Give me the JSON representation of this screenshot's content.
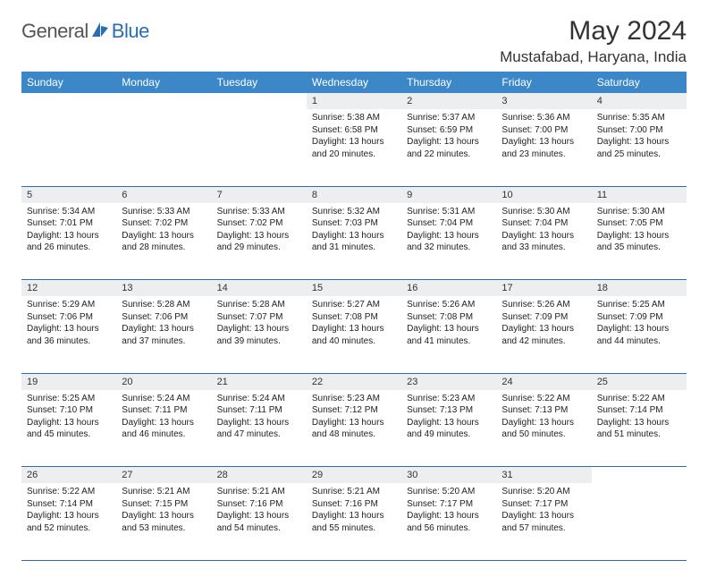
{
  "brand": {
    "part1": "General",
    "part2": "Blue"
  },
  "title": "May 2024",
  "location": "Mustafabad, Haryana, India",
  "weekdays": [
    "Sunday",
    "Monday",
    "Tuesday",
    "Wednesday",
    "Thursday",
    "Friday",
    "Saturday"
  ],
  "colors": {
    "header_bg": "#3b87c8",
    "header_text": "#ffffff",
    "daynum_bg": "#eceeef",
    "border": "#2a6db5",
    "logo_blue": "#2a6db5",
    "text": "#333333"
  },
  "weeks": [
    [
      {
        "n": "",
        "empty": true
      },
      {
        "n": "",
        "empty": true
      },
      {
        "n": "",
        "empty": true
      },
      {
        "n": "1",
        "sr": "5:38 AM",
        "ss": "6:58 PM",
        "dl": "13 hours and 20 minutes."
      },
      {
        "n": "2",
        "sr": "5:37 AM",
        "ss": "6:59 PM",
        "dl": "13 hours and 22 minutes."
      },
      {
        "n": "3",
        "sr": "5:36 AM",
        "ss": "7:00 PM",
        "dl": "13 hours and 23 minutes."
      },
      {
        "n": "4",
        "sr": "5:35 AM",
        "ss": "7:00 PM",
        "dl": "13 hours and 25 minutes."
      }
    ],
    [
      {
        "n": "5",
        "sr": "5:34 AM",
        "ss": "7:01 PM",
        "dl": "13 hours and 26 minutes."
      },
      {
        "n": "6",
        "sr": "5:33 AM",
        "ss": "7:02 PM",
        "dl": "13 hours and 28 minutes."
      },
      {
        "n": "7",
        "sr": "5:33 AM",
        "ss": "7:02 PM",
        "dl": "13 hours and 29 minutes."
      },
      {
        "n": "8",
        "sr": "5:32 AM",
        "ss": "7:03 PM",
        "dl": "13 hours and 31 minutes."
      },
      {
        "n": "9",
        "sr": "5:31 AM",
        "ss": "7:04 PM",
        "dl": "13 hours and 32 minutes."
      },
      {
        "n": "10",
        "sr": "5:30 AM",
        "ss": "7:04 PM",
        "dl": "13 hours and 33 minutes."
      },
      {
        "n": "11",
        "sr": "5:30 AM",
        "ss": "7:05 PM",
        "dl": "13 hours and 35 minutes."
      }
    ],
    [
      {
        "n": "12",
        "sr": "5:29 AM",
        "ss": "7:06 PM",
        "dl": "13 hours and 36 minutes."
      },
      {
        "n": "13",
        "sr": "5:28 AM",
        "ss": "7:06 PM",
        "dl": "13 hours and 37 minutes."
      },
      {
        "n": "14",
        "sr": "5:28 AM",
        "ss": "7:07 PM",
        "dl": "13 hours and 39 minutes."
      },
      {
        "n": "15",
        "sr": "5:27 AM",
        "ss": "7:08 PM",
        "dl": "13 hours and 40 minutes."
      },
      {
        "n": "16",
        "sr": "5:26 AM",
        "ss": "7:08 PM",
        "dl": "13 hours and 41 minutes."
      },
      {
        "n": "17",
        "sr": "5:26 AM",
        "ss": "7:09 PM",
        "dl": "13 hours and 42 minutes."
      },
      {
        "n": "18",
        "sr": "5:25 AM",
        "ss": "7:09 PM",
        "dl": "13 hours and 44 minutes."
      }
    ],
    [
      {
        "n": "19",
        "sr": "5:25 AM",
        "ss": "7:10 PM",
        "dl": "13 hours and 45 minutes."
      },
      {
        "n": "20",
        "sr": "5:24 AM",
        "ss": "7:11 PM",
        "dl": "13 hours and 46 minutes."
      },
      {
        "n": "21",
        "sr": "5:24 AM",
        "ss": "7:11 PM",
        "dl": "13 hours and 47 minutes."
      },
      {
        "n": "22",
        "sr": "5:23 AM",
        "ss": "7:12 PM",
        "dl": "13 hours and 48 minutes."
      },
      {
        "n": "23",
        "sr": "5:23 AM",
        "ss": "7:13 PM",
        "dl": "13 hours and 49 minutes."
      },
      {
        "n": "24",
        "sr": "5:22 AM",
        "ss": "7:13 PM",
        "dl": "13 hours and 50 minutes."
      },
      {
        "n": "25",
        "sr": "5:22 AM",
        "ss": "7:14 PM",
        "dl": "13 hours and 51 minutes."
      }
    ],
    [
      {
        "n": "26",
        "sr": "5:22 AM",
        "ss": "7:14 PM",
        "dl": "13 hours and 52 minutes."
      },
      {
        "n": "27",
        "sr": "5:21 AM",
        "ss": "7:15 PM",
        "dl": "13 hours and 53 minutes."
      },
      {
        "n": "28",
        "sr": "5:21 AM",
        "ss": "7:16 PM",
        "dl": "13 hours and 54 minutes."
      },
      {
        "n": "29",
        "sr": "5:21 AM",
        "ss": "7:16 PM",
        "dl": "13 hours and 55 minutes."
      },
      {
        "n": "30",
        "sr": "5:20 AM",
        "ss": "7:17 PM",
        "dl": "13 hours and 56 minutes."
      },
      {
        "n": "31",
        "sr": "5:20 AM",
        "ss": "7:17 PM",
        "dl": "13 hours and 57 minutes."
      },
      {
        "n": "",
        "empty": true
      }
    ]
  ],
  "labels": {
    "sunrise": "Sunrise: ",
    "sunset": "Sunset: ",
    "daylight": "Daylight: "
  }
}
